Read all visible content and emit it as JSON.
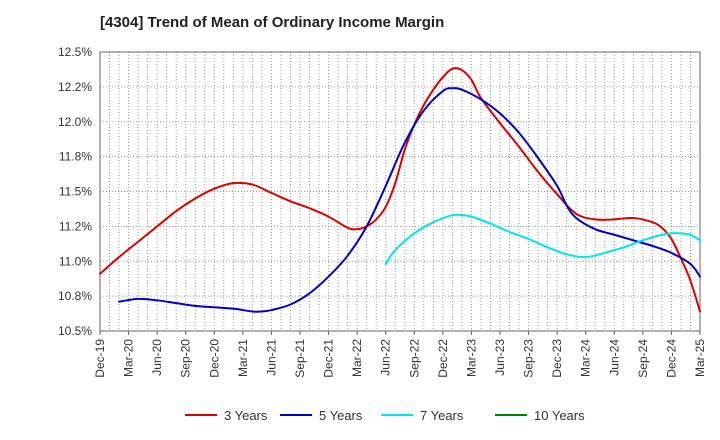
{
  "chart_data": {
    "type": "line",
    "title": "[4304]  Trend of Mean of Ordinary Income Margin",
    "xlabel": "",
    "ylabel": "",
    "x_ticks": [
      "Dec-19",
      "Mar-20",
      "Jun-20",
      "Sep-20",
      "Dec-20",
      "Mar-21",
      "Jun-21",
      "Sep-21",
      "Dec-21",
      "Mar-22",
      "Jun-22",
      "Sep-22",
      "Dec-22",
      "Mar-23",
      "Jun-23",
      "Sep-23",
      "Dec-23",
      "Mar-24",
      "Jun-24",
      "Sep-24",
      "Dec-24",
      "Mar-25"
    ],
    "y_ticks": [
      "10.5%",
      "10.8%",
      "11.0%",
      "11.2%",
      "11.5%",
      "11.8%",
      "12.0%",
      "12.2%",
      "12.5%"
    ],
    "y_tick_values": [
      10.5,
      10.75,
      11.0,
      11.25,
      11.5,
      11.75,
      12.0,
      12.25,
      12.5
    ],
    "ylim": [
      10.5,
      12.5
    ],
    "x_range_months": [
      0,
      63
    ],
    "grid": true,
    "legend_position": "bottom",
    "series": [
      {
        "name": "3 Years",
        "color": "#dd0000",
        "points": [
          [
            0,
            10.91
          ],
          [
            2,
            11.03
          ],
          [
            4,
            11.14
          ],
          [
            6,
            11.25
          ],
          [
            8,
            11.36
          ],
          [
            10,
            11.45
          ],
          [
            12,
            11.52
          ],
          [
            14,
            11.56
          ],
          [
            16,
            11.55
          ],
          [
            18,
            11.49
          ],
          [
            20,
            11.43
          ],
          [
            22,
            11.38
          ],
          [
            24,
            11.32
          ],
          [
            26,
            11.24
          ],
          [
            27,
            11.23
          ],
          [
            28,
            11.25
          ],
          [
            29,
            11.3
          ],
          [
            30,
            11.39
          ],
          [
            31,
            11.56
          ],
          [
            32,
            11.8
          ],
          [
            33,
            11.98
          ],
          [
            34,
            12.12
          ],
          [
            35,
            12.23
          ],
          [
            36,
            12.32
          ],
          [
            37,
            12.38
          ],
          [
            38,
            12.37
          ],
          [
            39,
            12.3
          ],
          [
            40,
            12.17
          ],
          [
            42,
            11.99
          ],
          [
            44,
            11.82
          ],
          [
            46,
            11.64
          ],
          [
            48,
            11.48
          ],
          [
            50,
            11.34
          ],
          [
            52,
            11.3
          ],
          [
            54,
            11.3
          ],
          [
            56,
            11.31
          ],
          [
            58,
            11.28
          ],
          [
            59,
            11.24
          ],
          [
            60,
            11.16
          ],
          [
            61,
            11.02
          ],
          [
            62,
            10.86
          ],
          [
            63,
            10.64
          ]
        ]
      },
      {
        "name": "5 Years",
        "color": "#0000cc",
        "points": [
          [
            2,
            10.71
          ],
          [
            4,
            10.73
          ],
          [
            6,
            10.72
          ],
          [
            8,
            10.7
          ],
          [
            10,
            10.68
          ],
          [
            12,
            10.67
          ],
          [
            14,
            10.66
          ],
          [
            16,
            10.64
          ],
          [
            17,
            10.64
          ],
          [
            18,
            10.65
          ],
          [
            20,
            10.69
          ],
          [
            22,
            10.77
          ],
          [
            24,
            10.89
          ],
          [
            26,
            11.04
          ],
          [
            28,
            11.25
          ],
          [
            30,
            11.54
          ],
          [
            32,
            11.85
          ],
          [
            34,
            12.08
          ],
          [
            36,
            12.22
          ],
          [
            37,
            12.24
          ],
          [
            38,
            12.23
          ],
          [
            40,
            12.16
          ],
          [
            42,
            12.06
          ],
          [
            44,
            11.92
          ],
          [
            46,
            11.74
          ],
          [
            48,
            11.54
          ],
          [
            49,
            11.4
          ],
          [
            50,
            11.31
          ],
          [
            52,
            11.23
          ],
          [
            54,
            11.19
          ],
          [
            56,
            11.15
          ],
          [
            58,
            11.11
          ],
          [
            60,
            11.06
          ],
          [
            62,
            10.98
          ],
          [
            63,
            10.89
          ]
        ]
      },
      {
        "name": "7 Years",
        "color": "#00e5ee",
        "points": [
          [
            30,
            10.98
          ],
          [
            31,
            11.08
          ],
          [
            33,
            11.2
          ],
          [
            35,
            11.28
          ],
          [
            37,
            11.33
          ],
          [
            38,
            11.33
          ],
          [
            39,
            11.32
          ],
          [
            41,
            11.27
          ],
          [
            43,
            11.21
          ],
          [
            45,
            11.16
          ],
          [
            47,
            11.1
          ],
          [
            49,
            11.05
          ],
          [
            51,
            11.03
          ],
          [
            53,
            11.06
          ],
          [
            55,
            11.1
          ],
          [
            57,
            11.15
          ],
          [
            59,
            11.19
          ],
          [
            60,
            11.2
          ],
          [
            61,
            11.2
          ],
          [
            62,
            11.19
          ],
          [
            63,
            11.15
          ]
        ]
      },
      {
        "name": "10 Years",
        "color": "#008000",
        "points": []
      }
    ]
  }
}
